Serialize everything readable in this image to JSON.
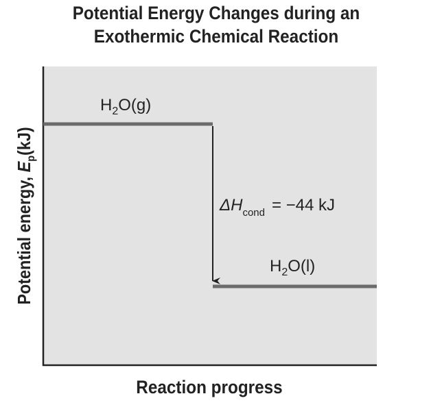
{
  "title": {
    "line1": "Potential Energy Changes during an",
    "line2": "Exothermic Chemical Reaction"
  },
  "axes": {
    "y_label_prefix": "Potential energy, ",
    "y_label_var": "E",
    "y_label_sub": "p",
    "y_label_unit": "(kJ)",
    "x_label": "Reaction progress"
  },
  "levels": {
    "reactant": {
      "formula": "H",
      "sub": "2",
      "rest": "O(g)"
    },
    "product": {
      "formula": "H",
      "sub": "2",
      "rest": "O(l)"
    }
  },
  "enthalpy": {
    "symbol": "ΔH",
    "subscript": "cond",
    "equals": "= −44 kJ"
  },
  "colors": {
    "plot_background": "#e3e3e3",
    "level_line": "#6b6b6b",
    "axis": "#222222",
    "text": "#222222"
  }
}
